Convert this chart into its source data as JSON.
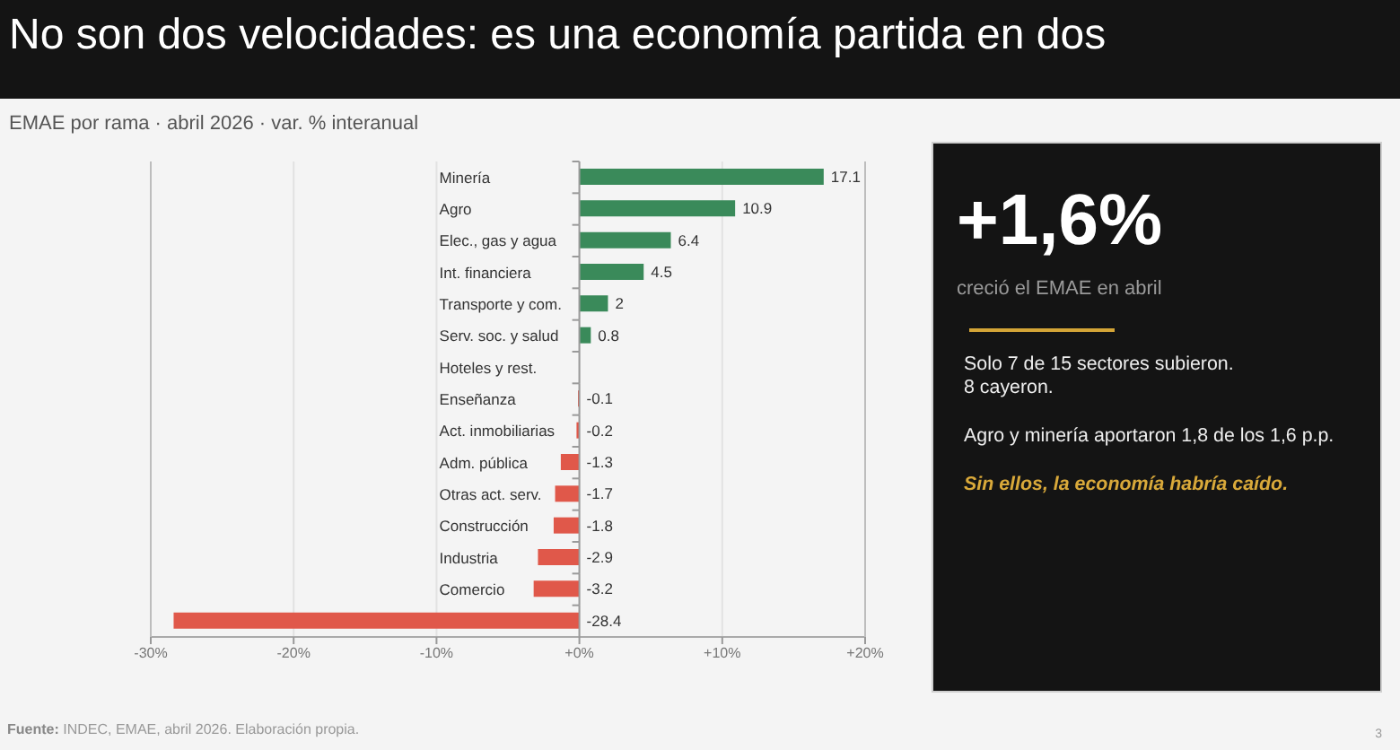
{
  "chart_data": [
    {
      "type": "bar",
      "title": "No son dos velocidades: es una economía partida en dos",
      "subtitle": "EMAE por rama · abril 2026 · var. % interanual",
      "orientation": "horizontal",
      "categories": [
        "Minería",
        "Agro",
        "Elec., gas y agua",
        "Int. financiera",
        "Transporte y com.",
        "Serv. soc. y salud",
        "Hoteles y rest.",
        "Enseñanza",
        "Act. inmobiliarias",
        "Adm. pública",
        "Otras act. serv.",
        "Construcción",
        "Industria",
        "Comercio",
        null
      ],
      "values": [
        17.1,
        10.9,
        6.4,
        4.5,
        2,
        0.8,
        null,
        -0.1,
        -0.2,
        -1.3,
        -1.7,
        -1.8,
        -2.9,
        -3.2,
        -28.4
      ],
      "colors": [
        "#3a8a5a",
        "#3a8a5a",
        "#3a8a5a",
        "#3a8a5a",
        "#3a8a5a",
        "#3a8a5a",
        null,
        "#e0584a",
        "#e0584a",
        "#e0584a",
        "#e0584a",
        "#e0584a",
        "#e0584a",
        "#e0584a",
        "#e0584a"
      ],
      "xlim": [
        -30,
        20
      ],
      "xticks": [
        {
          "value": -30,
          "label": "-30%"
        },
        {
          "value": -20,
          "label": "-20%"
        },
        {
          "value": -10,
          "label": "-10%"
        },
        {
          "value": 0,
          "label": "+0%"
        },
        {
          "value": 10,
          "label": "+10%"
        },
        {
          "value": 20,
          "label": "+20%"
        }
      ],
      "grid": "x",
      "data_labels": true,
      "annotations": [
        "Fuente: INDEC, EMAE, abril 2026. Elaboración propia.",
        "3"
      ]
    },
    {
      "type": "other",
      "title": "+1,6%",
      "subtitle": "creció el EMAE en abril",
      "annotations": [
        "Solo 7 de 15 sectores subieron.",
        "8 cayeron.",
        "Agro y minería aportaron 1,8 de los 1,6 p.p.",
        "Sin ellos, la economía habría caído."
      ]
    }
  ]
}
